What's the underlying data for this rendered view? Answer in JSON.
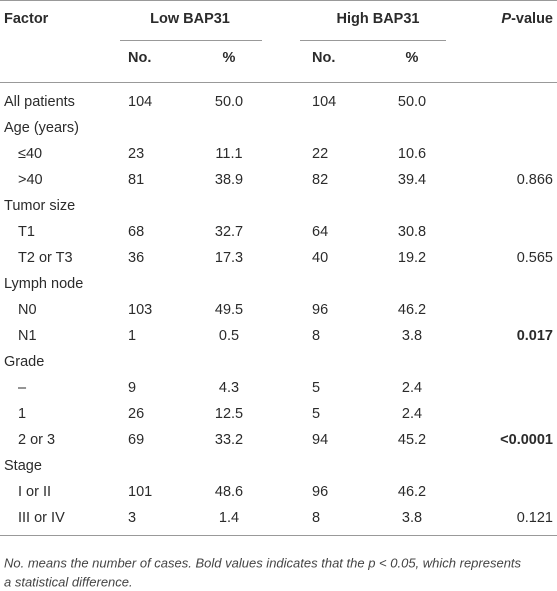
{
  "table": {
    "header": {
      "factor": "Factor",
      "low": "Low BAP31",
      "high": "High BAP31",
      "p": "P-value",
      "p_suffix": "-value",
      "p_letter": "P",
      "no": "No.",
      "pct": "%"
    },
    "rows": [
      {
        "factor": "All patients",
        "low_no": "104",
        "low_pct": "50.0",
        "high_no": "104",
        "high_pct": "50.0"
      },
      {
        "factor": "Age (years)"
      },
      {
        "factor": "≤40",
        "low_no": "23",
        "low_pct": "11.1",
        "high_no": "22",
        "high_pct": "10.6",
        "indent": true
      },
      {
        "factor": ">40",
        "low_no": "81",
        "low_pct": "38.9",
        "high_no": "82",
        "high_pct": "39.4",
        "p": "0.866",
        "indent": true
      },
      {
        "factor": "Tumor size"
      },
      {
        "factor": "T1",
        "low_no": "68",
        "low_pct": "32.7",
        "high_no": "64",
        "high_pct": "30.8",
        "indent": true
      },
      {
        "factor": "T2 or T3",
        "low_no": "36",
        "low_pct": "17.3",
        "high_no": "40",
        "high_pct": "19.2",
        "p": "0.565",
        "indent": true
      },
      {
        "factor": "Lymph node"
      },
      {
        "factor": "N0",
        "low_no": "103",
        "low_pct": "49.5",
        "high_no": "96",
        "high_pct": "46.2",
        "indent": true
      },
      {
        "factor": "N1",
        "low_no": "1",
        "low_pct": "0.5",
        "high_no": "8",
        "high_pct": "3.8",
        "p": "0.017",
        "p_bold": true,
        "indent": true
      },
      {
        "factor": "Grade"
      },
      {
        "factor": "–",
        "low_no": "9",
        "low_pct": "4.3",
        "high_no": "5",
        "high_pct": "2.4",
        "indent": true
      },
      {
        "factor": "1",
        "low_no": "26",
        "low_pct": "12.5",
        "high_no": "5",
        "high_pct": "2.4",
        "indent": true
      },
      {
        "factor": "2 or 3",
        "low_no": "69",
        "low_pct": "33.2",
        "high_no": "94",
        "high_pct": "45.2",
        "p": "<0.0001",
        "p_bold": true,
        "indent": true
      },
      {
        "factor": "Stage"
      },
      {
        "factor": "I or II",
        "low_no": "101",
        "low_pct": "48.6",
        "high_no": "96",
        "high_pct": "46.2",
        "indent": true
      },
      {
        "factor": "III or IV",
        "low_no": "3",
        "low_pct": "1.4",
        "high_no": "8",
        "high_pct": "3.8",
        "p": "0.121",
        "indent": true
      }
    ],
    "note": [
      "No. means the number of cases. Bold values indicates that the p < 0.05, which represents",
      "a statistical difference."
    ]
  }
}
